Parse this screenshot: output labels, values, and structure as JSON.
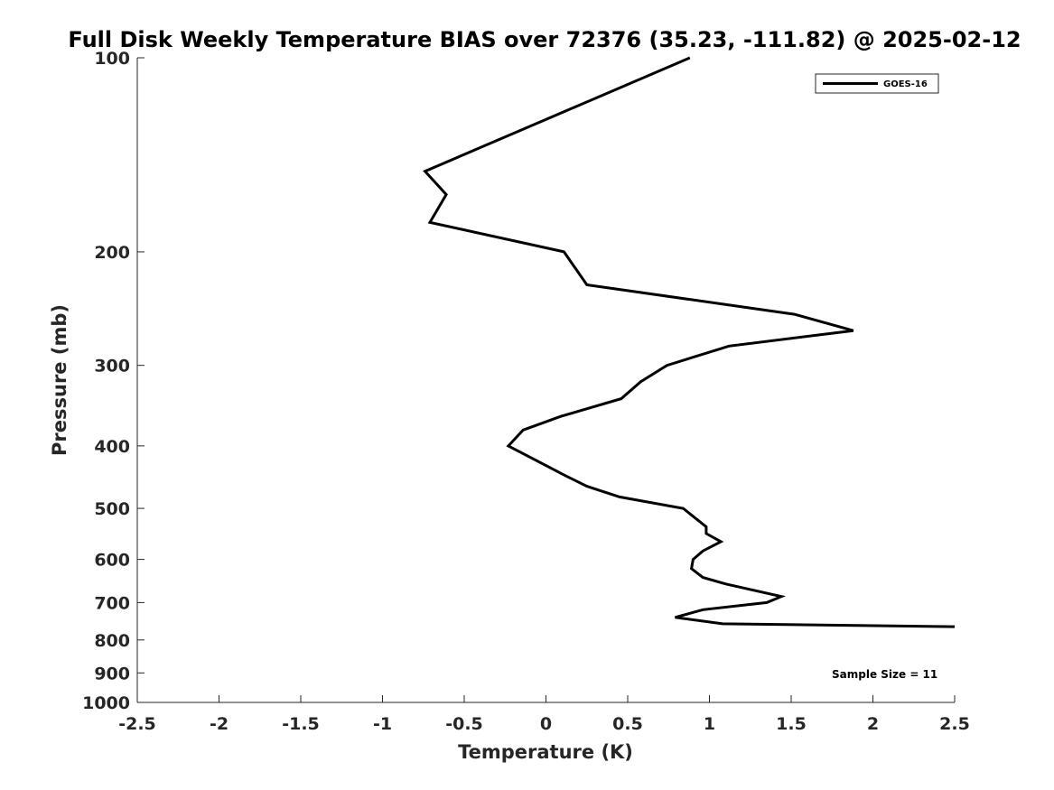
{
  "chart_data": {
    "type": "line",
    "title": "Full Disk Weekly Temperature BIAS over 72376 (35.23, -111.82) @ 2025-02-12",
    "xlabel": "Temperature (K)",
    "ylabel": "Pressure (mb)",
    "xlim": [
      -2.5,
      2.5
    ],
    "ylim": [
      1000,
      100
    ],
    "y_scale": "log",
    "y_direction": "reversed",
    "x_ticks": [
      "-2.5",
      "-2",
      "-1.5",
      "-1",
      "-0.5",
      "0",
      "0.5",
      "1",
      "1.5",
      "2",
      "2.5"
    ],
    "x_tick_values": [
      -2.5,
      -2,
      -1.5,
      -1,
      -0.5,
      0,
      0.5,
      1,
      1.5,
      2,
      2.5
    ],
    "y_ticks": [
      "100",
      "200",
      "300",
      "400",
      "500",
      "600",
      "700",
      "800",
      "900",
      "1000"
    ],
    "y_tick_values": [
      100,
      200,
      300,
      400,
      500,
      600,
      700,
      800,
      900,
      1000
    ],
    "grid": false,
    "legend_position": "top-right",
    "series": [
      {
        "name": "GOES-16",
        "color": "#000000",
        "points": [
          {
            "x": 0.88,
            "y": 100
          },
          {
            "x": -0.74,
            "y": 150
          },
          {
            "x": -0.61,
            "y": 163
          },
          {
            "x": -0.71,
            "y": 180
          },
          {
            "x": 0.11,
            "y": 200
          },
          {
            "x": 0.25,
            "y": 225
          },
          {
            "x": 1.52,
            "y": 250
          },
          {
            "x": 1.88,
            "y": 265
          },
          {
            "x": 1.12,
            "y": 280
          },
          {
            "x": 0.74,
            "y": 300
          },
          {
            "x": 0.58,
            "y": 318
          },
          {
            "x": 0.46,
            "y": 338
          },
          {
            "x": 0.09,
            "y": 360
          },
          {
            "x": -0.14,
            "y": 378
          },
          {
            "x": -0.23,
            "y": 400
          },
          {
            "x": 0.12,
            "y": 445
          },
          {
            "x": 0.25,
            "y": 462
          },
          {
            "x": 0.45,
            "y": 480
          },
          {
            "x": 0.84,
            "y": 500
          },
          {
            "x": 0.98,
            "y": 534
          },
          {
            "x": 0.98,
            "y": 547
          },
          {
            "x": 1.07,
            "y": 563
          },
          {
            "x": 0.96,
            "y": 582
          },
          {
            "x": 0.9,
            "y": 600
          },
          {
            "x": 0.89,
            "y": 620
          },
          {
            "x": 0.96,
            "y": 640
          },
          {
            "x": 1.1,
            "y": 655
          },
          {
            "x": 1.44,
            "y": 685
          },
          {
            "x": 1.35,
            "y": 700
          },
          {
            "x": 0.96,
            "y": 718
          },
          {
            "x": 0.79,
            "y": 738
          },
          {
            "x": 1.08,
            "y": 755
          },
          {
            "x": 2.5,
            "y": 763
          }
        ]
      }
    ],
    "annotation": "Sample Size = 11",
    "annotation_position": "bottom-right"
  }
}
